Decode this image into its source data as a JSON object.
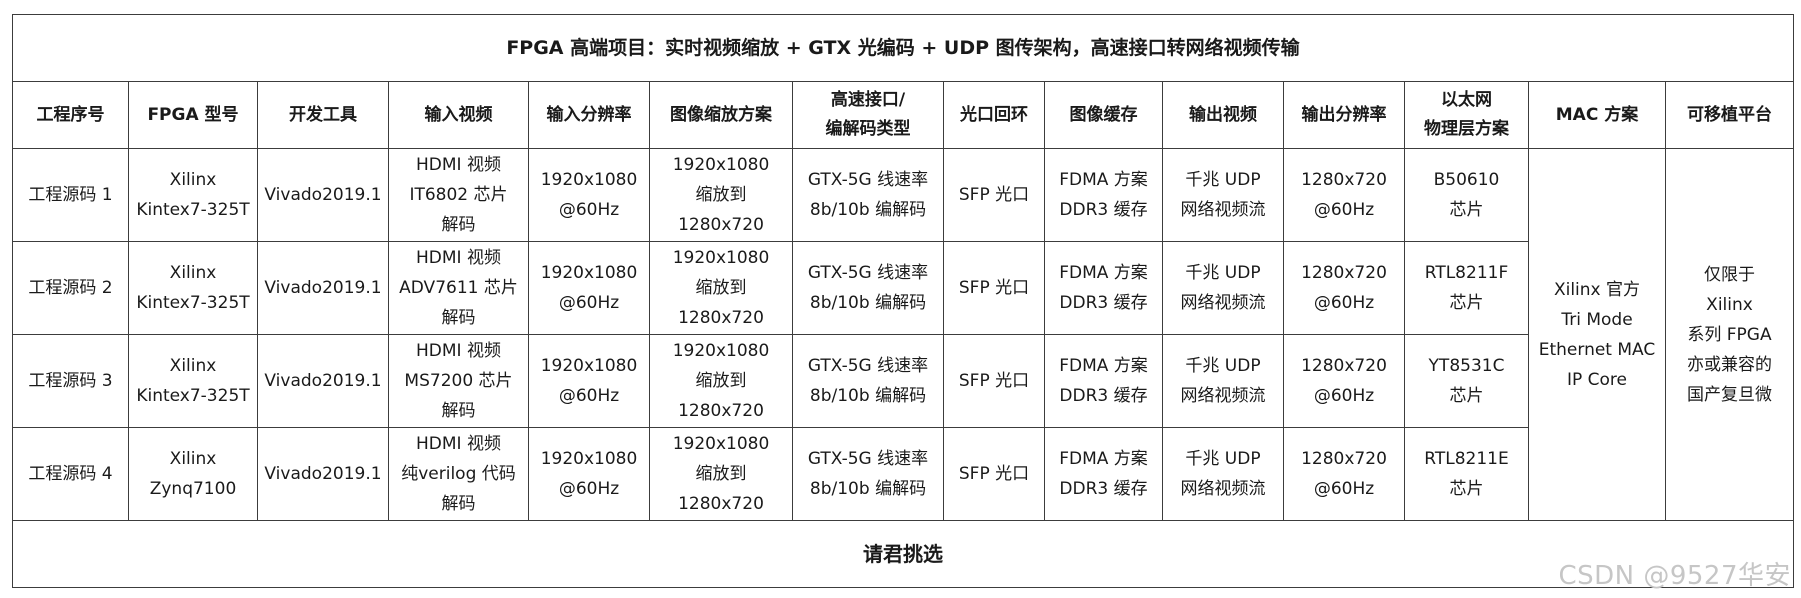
{
  "title": "FPGA 高端项目：实时视频缩放 + GTX 光编码 + UDP 图传架构，高速接口转网络视频传输",
  "headers": [
    "工程序号",
    "FPGA 型号",
    "开发工具",
    "输入视频",
    "输入分辨率",
    "图像缩放方案",
    "高速接口/\n编解码类型",
    "光口回环",
    "图像缓存",
    "输出视频",
    "输出分辨率",
    "以太网\n物理层方案",
    "MAC 方案",
    "可移植平台"
  ],
  "rows": [
    {
      "id": "工程源码 1",
      "fpga": "Xilinx\nKintex7-325T",
      "tool": "Vivado2019.1",
      "input_video": "HDMI 视频\nIT6802 芯片\n解码",
      "input_res": "1920x1080\n@60Hz",
      "scale": "1920x1080\n缩放到\n1280x720",
      "hsi": "GTX-5G 线速率\n8b/10b 编解码",
      "loop": "SFP 光口",
      "cache": "FDMA 方案\nDDR3 缓存",
      "output_video": "千兆 UDP\n网络视频流",
      "output_res": "1280x720\n@60Hz",
      "phy": "B50610\n芯片"
    },
    {
      "id": "工程源码 2",
      "fpga": "Xilinx\nKintex7-325T",
      "tool": "Vivado2019.1",
      "input_video": "HDMI 视频\nADV7611 芯片\n解码",
      "input_res": "1920x1080\n@60Hz",
      "scale": "1920x1080\n缩放到\n1280x720",
      "hsi": "GTX-5G 线速率\n8b/10b 编解码",
      "loop": "SFP 光口",
      "cache": "FDMA 方案\nDDR3 缓存",
      "output_video": "千兆 UDP\n网络视频流",
      "output_res": "1280x720\n@60Hz",
      "phy": "RTL8211F\n芯片"
    },
    {
      "id": "工程源码 3",
      "fpga": "Xilinx\nKintex7-325T",
      "tool": "Vivado2019.1",
      "input_video": "HDMI 视频\nMS7200 芯片\n解码",
      "input_res": "1920x1080\n@60Hz",
      "scale": "1920x1080\n缩放到\n1280x720",
      "hsi": "GTX-5G 线速率\n8b/10b 编解码",
      "loop": "SFP 光口",
      "cache": "FDMA 方案\nDDR3 缓存",
      "output_video": "千兆 UDP\n网络视频流",
      "output_res": "1280x720\n@60Hz",
      "phy": "YT8531C\n芯片"
    },
    {
      "id": "工程源码 4",
      "fpga": "Xilinx\nZynq7100",
      "tool": "Vivado2019.1",
      "input_video": "HDMI 视频\n纯verilog 代码\n解码",
      "input_res": "1920x1080\n@60Hz",
      "scale": "1920x1080\n缩放到\n1280x720",
      "hsi": "GTX-5G 线速率\n8b/10b 编解码",
      "loop": "SFP 光口",
      "cache": "FDMA 方案\nDDR3 缓存",
      "output_video": "千兆 UDP\n网络视频流",
      "output_res": "1280x720\n@60Hz",
      "phy": "RTL8211E\n芯片"
    }
  ],
  "mac": "Xilinx 官方\nTri Mode\nEthernet MAC\nIP Core",
  "platform": "仅限于\nXilinx\n系列 FPGA\n亦或兼容的\n国产复旦微",
  "footer": "请君挑选",
  "watermark": "CSDN @9527华安"
}
